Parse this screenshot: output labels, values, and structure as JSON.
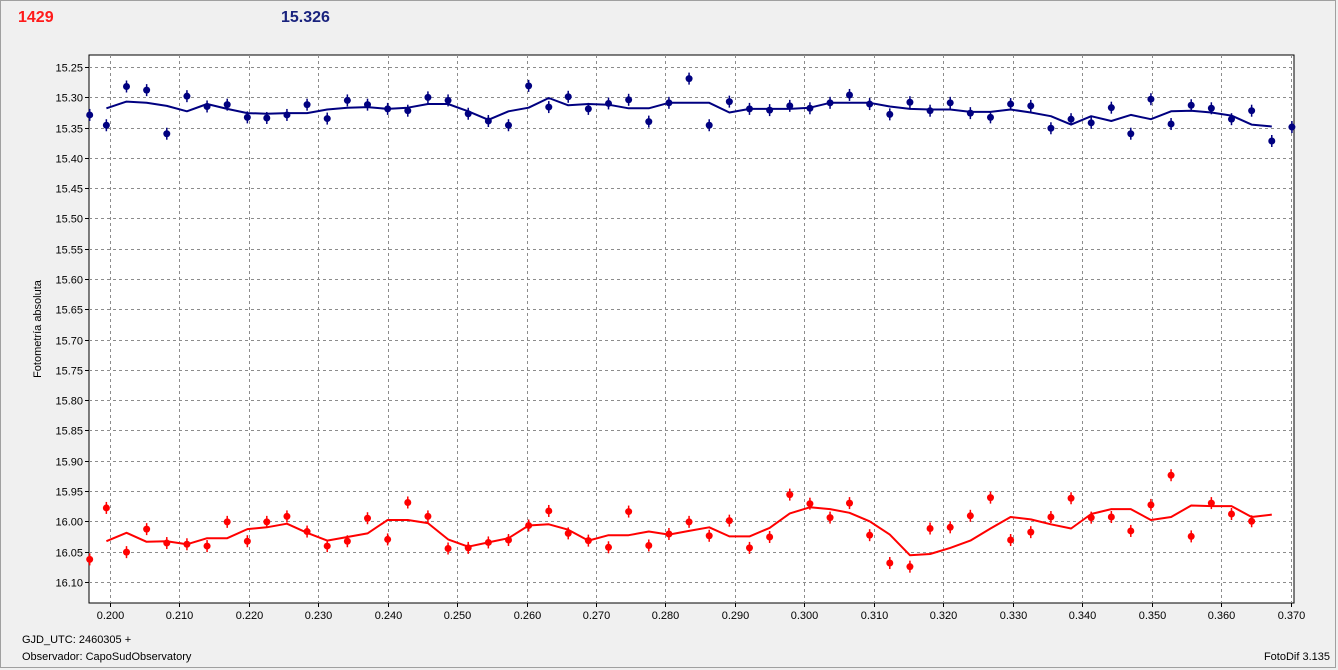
{
  "header": {
    "count": "1429",
    "magnitude": "15.326"
  },
  "footer": {
    "gjd": "GJD_UTC: 2460305 +",
    "observer": "Observador: CapoSudObservatory",
    "software": "FotoDif 3.135"
  },
  "colors": {
    "blue_series": "#000080",
    "red_series": "#ff0000",
    "grid": "#8c8c8c",
    "plot_bg": "#ffffff"
  },
  "chart_data": {
    "type": "scatter",
    "ylabel": "Fotometría absoluta",
    "xlabel": "",
    "xlim": [
      0.197,
      0.3705
    ],
    "ylim": [
      15.23,
      16.135
    ],
    "y_inverted": true,
    "grid": true,
    "x_ticks": [
      "0.200",
      "0.210",
      "0.220",
      "0.230",
      "0.240",
      "0.250",
      "0.260",
      "0.270",
      "0.280",
      "0.290",
      "0.300",
      "0.310",
      "0.320",
      "0.330",
      "0.340",
      "0.350",
      "0.360",
      "0.370"
    ],
    "y_ticks": [
      "15.25",
      "15.30",
      "15.35",
      "15.40",
      "15.45",
      "15.50",
      "15.55",
      "15.60",
      "15.65",
      "15.70",
      "15.75",
      "15.80",
      "15.85",
      "15.90",
      "15.95",
      "16.00",
      "16.05",
      "16.10"
    ],
    "series": [
      {
        "color": "#000080",
        "points": [
          [
            0.1971,
            15.329
          ],
          [
            0.1995,
            15.346
          ],
          [
            0.2024,
            15.282
          ],
          [
            0.2053,
            15.288
          ],
          [
            0.2082,
            15.36
          ],
          [
            0.2111,
            15.298
          ],
          [
            0.214,
            15.315
          ],
          [
            0.2169,
            15.312
          ],
          [
            0.2198,
            15.333
          ],
          [
            0.2226,
            15.334
          ],
          [
            0.2255,
            15.329
          ],
          [
            0.2284,
            15.312
          ],
          [
            0.2313,
            15.335
          ],
          [
            0.2342,
            15.305
          ],
          [
            0.2371,
            15.312
          ],
          [
            0.24,
            15.319
          ],
          [
            0.2429,
            15.322
          ],
          [
            0.2458,
            15.3
          ],
          [
            0.2487,
            15.305
          ],
          [
            0.2516,
            15.327
          ],
          [
            0.2545,
            15.339
          ],
          [
            0.2574,
            15.346
          ],
          [
            0.2603,
            15.281
          ],
          [
            0.2632,
            15.316
          ],
          [
            0.266,
            15.299
          ],
          [
            0.2689,
            15.319
          ],
          [
            0.2718,
            15.31
          ],
          [
            0.2747,
            15.304
          ],
          [
            0.2776,
            15.34
          ],
          [
            0.2805,
            15.309
          ],
          [
            0.2834,
            15.269
          ],
          [
            0.2863,
            15.346
          ],
          [
            0.2892,
            15.307
          ],
          [
            0.2921,
            15.319
          ],
          [
            0.295,
            15.321
          ],
          [
            0.2979,
            15.314
          ],
          [
            0.3008,
            15.318
          ],
          [
            0.3037,
            15.309
          ],
          [
            0.3065,
            15.296
          ],
          [
            0.3094,
            15.311
          ],
          [
            0.3123,
            15.328
          ],
          [
            0.3152,
            15.308
          ],
          [
            0.3181,
            15.322
          ],
          [
            0.321,
            15.309
          ],
          [
            0.3239,
            15.326
          ],
          [
            0.3268,
            15.333
          ],
          [
            0.3297,
            15.311
          ],
          [
            0.3326,
            15.314
          ],
          [
            0.3355,
            15.351
          ],
          [
            0.3384,
            15.336
          ],
          [
            0.3413,
            15.342
          ],
          [
            0.3442,
            15.317
          ],
          [
            0.347,
            15.36
          ],
          [
            0.3499,
            15.303
          ],
          [
            0.3528,
            15.344
          ],
          [
            0.3557,
            15.313
          ],
          [
            0.3586,
            15.318
          ],
          [
            0.3615,
            15.336
          ],
          [
            0.3644,
            15.322
          ],
          [
            0.3673,
            15.372
          ],
          [
            0.3702,
            15.349
          ]
        ],
        "fit": [
          [
            0.1995,
            15.318
          ],
          [
            0.2024,
            15.307
          ],
          [
            0.2053,
            15.309
          ],
          [
            0.2082,
            15.314
          ],
          [
            0.2111,
            15.323
          ],
          [
            0.214,
            15.311
          ],
          [
            0.2169,
            15.319
          ],
          [
            0.2198,
            15.326
          ],
          [
            0.2226,
            15.327
          ],
          [
            0.2255,
            15.326
          ],
          [
            0.2284,
            15.326
          ],
          [
            0.2313,
            15.32
          ],
          [
            0.2342,
            15.317
          ],
          [
            0.2371,
            15.316
          ],
          [
            0.24,
            15.319
          ],
          [
            0.2429,
            15.317
          ],
          [
            0.2458,
            15.311
          ],
          [
            0.2487,
            15.311
          ],
          [
            0.2516,
            15.323
          ],
          [
            0.2545,
            15.337
          ],
          [
            0.2574,
            15.323
          ],
          [
            0.2603,
            15.317
          ],
          [
            0.2632,
            15.301
          ],
          [
            0.266,
            15.313
          ],
          [
            0.2689,
            15.311
          ],
          [
            0.2718,
            15.312
          ],
          [
            0.2747,
            15.318
          ],
          [
            0.2776,
            15.318
          ],
          [
            0.2805,
            15.309
          ],
          [
            0.2834,
            15.309
          ],
          [
            0.2863,
            15.309
          ],
          [
            0.2892,
            15.325
          ],
          [
            0.2921,
            15.319
          ],
          [
            0.295,
            15.319
          ],
          [
            0.2979,
            15.319
          ],
          [
            0.3008,
            15.317
          ],
          [
            0.3037,
            15.309
          ],
          [
            0.3065,
            15.309
          ],
          [
            0.3094,
            15.309
          ],
          [
            0.3123,
            15.315
          ],
          [
            0.3152,
            15.319
          ],
          [
            0.3181,
            15.32
          ],
          [
            0.321,
            15.32
          ],
          [
            0.3239,
            15.324
          ],
          [
            0.3268,
            15.324
          ],
          [
            0.3297,
            15.32
          ],
          [
            0.3326,
            15.325
          ],
          [
            0.3355,
            15.331
          ],
          [
            0.3384,
            15.345
          ],
          [
            0.3413,
            15.331
          ],
          [
            0.3442,
            15.339
          ],
          [
            0.347,
            15.329
          ],
          [
            0.3499,
            15.336
          ],
          [
            0.3528,
            15.323
          ],
          [
            0.3557,
            15.322
          ],
          [
            0.3586,
            15.325
          ],
          [
            0.3615,
            15.33
          ],
          [
            0.3644,
            15.345
          ],
          [
            0.3673,
            15.348
          ]
        ]
      },
      {
        "color": "#ff0000",
        "points": [
          [
            0.1971,
            16.063
          ],
          [
            0.1995,
            15.978
          ],
          [
            0.2024,
            16.051
          ],
          [
            0.2053,
            16.013
          ],
          [
            0.2082,
            16.036
          ],
          [
            0.2111,
            16.038
          ],
          [
            0.214,
            16.041
          ],
          [
            0.2169,
            16.001
          ],
          [
            0.2198,
            16.033
          ],
          [
            0.2226,
            16.001
          ],
          [
            0.2255,
            15.992
          ],
          [
            0.2284,
            16.017
          ],
          [
            0.2313,
            16.041
          ],
          [
            0.2342,
            16.033
          ],
          [
            0.2371,
            15.995
          ],
          [
            0.24,
            16.03
          ],
          [
            0.2429,
            15.969
          ],
          [
            0.2458,
            15.992
          ],
          [
            0.2487,
            16.045
          ],
          [
            0.2516,
            16.044
          ],
          [
            0.2545,
            16.035
          ],
          [
            0.2574,
            16.031
          ],
          [
            0.2603,
            16.007
          ],
          [
            0.2632,
            15.983
          ],
          [
            0.266,
            16.02
          ],
          [
            0.2689,
            16.032
          ],
          [
            0.2718,
            16.043
          ],
          [
            0.2747,
            15.984
          ],
          [
            0.2776,
            16.04
          ],
          [
            0.2805,
            16.021
          ],
          [
            0.2834,
            16.001
          ],
          [
            0.2863,
            16.024
          ],
          [
            0.2892,
            15.999
          ],
          [
            0.2921,
            16.044
          ],
          [
            0.295,
            16.026
          ],
          [
            0.2979,
            15.956
          ],
          [
            0.3008,
            15.971
          ],
          [
            0.3037,
            15.994
          ],
          [
            0.3065,
            15.97
          ],
          [
            0.3094,
            16.023
          ],
          [
            0.3123,
            16.069
          ],
          [
            0.3152,
            16.075
          ],
          [
            0.3181,
            16.012
          ],
          [
            0.321,
            16.01
          ],
          [
            0.3239,
            15.991
          ],
          [
            0.3268,
            15.961
          ],
          [
            0.3297,
            16.031
          ],
          [
            0.3326,
            16.018
          ],
          [
            0.3355,
            15.993
          ],
          [
            0.3384,
            15.962
          ],
          [
            0.3413,
            15.994
          ],
          [
            0.3442,
            15.993
          ],
          [
            0.347,
            16.016
          ],
          [
            0.3499,
            15.973
          ],
          [
            0.3528,
            15.924
          ],
          [
            0.3557,
            16.025
          ],
          [
            0.3586,
            15.97
          ],
          [
            0.3615,
            15.988
          ],
          [
            0.3644,
            16.0
          ]
        ],
        "fit": [
          [
            0.1995,
            16.033
          ],
          [
            0.2024,
            16.019
          ],
          [
            0.2053,
            16.034
          ],
          [
            0.2082,
            16.033
          ],
          [
            0.2111,
            16.038
          ],
          [
            0.214,
            16.028
          ],
          [
            0.2169,
            16.028
          ],
          [
            0.2198,
            16.013
          ],
          [
            0.2226,
            16.01
          ],
          [
            0.2255,
            16.004
          ],
          [
            0.2284,
            16.019
          ],
          [
            0.2313,
            16.032
          ],
          [
            0.2342,
            16.026
          ],
          [
            0.2371,
            16.02
          ],
          [
            0.24,
            15.998
          ],
          [
            0.2429,
            15.998
          ],
          [
            0.2458,
            16.003
          ],
          [
            0.2487,
            16.03
          ],
          [
            0.2516,
            16.042
          ],
          [
            0.2545,
            16.035
          ],
          [
            0.2574,
            16.028
          ],
          [
            0.2603,
            16.007
          ],
          [
            0.2632,
            16.005
          ],
          [
            0.266,
            16.014
          ],
          [
            0.2689,
            16.032
          ],
          [
            0.2718,
            16.023
          ],
          [
            0.2747,
            16.023
          ],
          [
            0.2776,
            16.017
          ],
          [
            0.2805,
            16.022
          ],
          [
            0.2834,
            16.016
          ],
          [
            0.2863,
            16.01
          ],
          [
            0.2892,
            16.025
          ],
          [
            0.2921,
            16.025
          ],
          [
            0.295,
            16.011
          ],
          [
            0.2979,
            15.987
          ],
          [
            0.3008,
            15.977
          ],
          [
            0.3037,
            15.98
          ],
          [
            0.3065,
            15.986
          ],
          [
            0.3094,
            16.0
          ],
          [
            0.3123,
            16.022
          ],
          [
            0.3152,
            16.056
          ],
          [
            0.3181,
            16.054
          ],
          [
            0.321,
            16.044
          ],
          [
            0.3239,
            16.032
          ],
          [
            0.3268,
            16.012
          ],
          [
            0.3297,
            15.993
          ],
          [
            0.3326,
            15.997
          ],
          [
            0.3355,
            16.005
          ],
          [
            0.3384,
            16.012
          ],
          [
            0.3413,
            15.988
          ],
          [
            0.3442,
            15.98
          ],
          [
            0.347,
            15.98
          ],
          [
            0.3499,
            15.998
          ],
          [
            0.3528,
            15.993
          ],
          [
            0.3557,
            15.974
          ],
          [
            0.3586,
            15.975
          ],
          [
            0.3615,
            15.975
          ],
          [
            0.3644,
            15.993
          ],
          [
            0.3673,
            15.989
          ]
        ]
      }
    ]
  }
}
